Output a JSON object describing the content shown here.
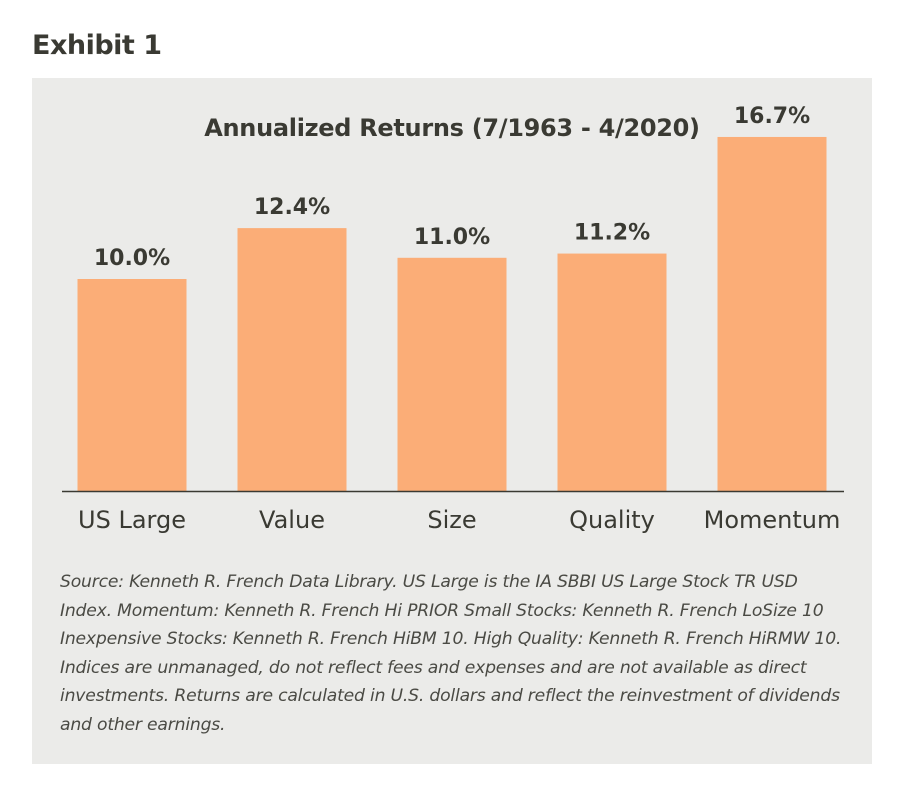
{
  "exhibit_label": "Exhibit 1",
  "colors": {
    "bar": "#fbad77",
    "panel": "#ebebe9",
    "text": "#3a3a33",
    "axis": "#3a3a33"
  },
  "chart_data": {
    "type": "bar",
    "title": "Annualized Returns (7/1963 - 4/2020)",
    "categories": [
      "US Large",
      "Value",
      "Size",
      "Quality",
      "Momentum"
    ],
    "values": [
      10.0,
      12.4,
      11.0,
      11.2,
      16.7
    ],
    "data_labels": [
      "10.0%",
      "12.4%",
      "11.0%",
      "11.2%",
      "16.7%"
    ],
    "unit": "%",
    "ylim": [
      0,
      17.5
    ],
    "grid": false,
    "legend": "none"
  },
  "source_note": "Source: Kenneth R. French Data Library. US Large is the IA SBBI US Large Stock TR USD Index. Momentum: Kenneth R. French Hi PRIOR Small Stocks: Kenneth R. French LoSize 10 Inexpensive Stocks: Kenneth R. French HiBM 10. High Quality: Kenneth R. French HiRMW 10. Indices are unmanaged, do not reflect fees and expenses and are not available as direct investments. Returns are calculated in U.S. dollars and reflect the reinvestment of dividends and other earnings."
}
